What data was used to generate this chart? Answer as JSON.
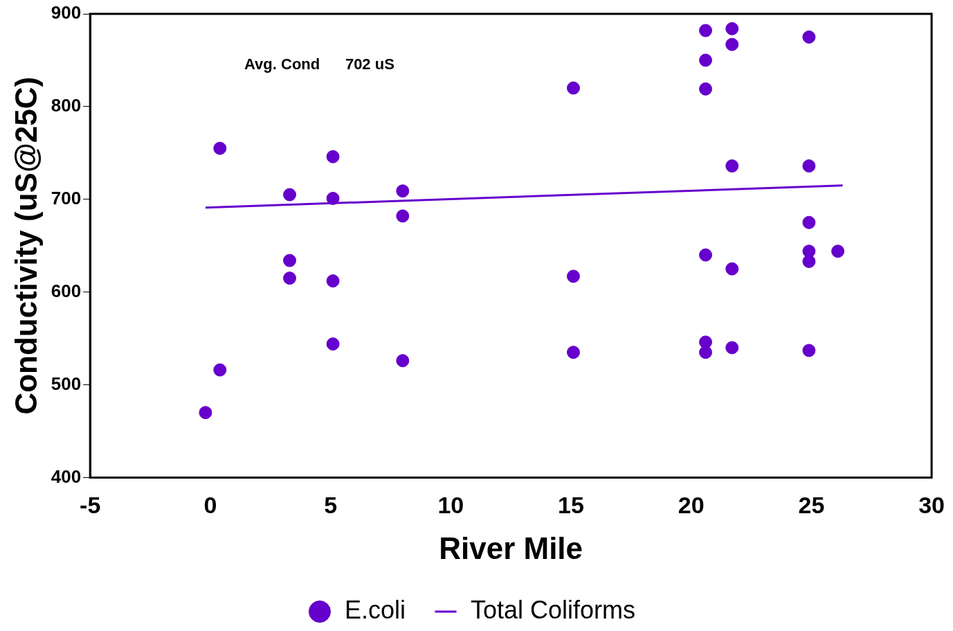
{
  "chart_data": {
    "type": "scatter",
    "xlabel": "River Mile",
    "ylabel": "Conductivity (uS@25C)",
    "annotations": [
      "Avg. Cond      702 uS"
    ],
    "xlim": [
      -5,
      30
    ],
    "xticks": [
      -5,
      0,
      5,
      10,
      15,
      20,
      25,
      30
    ],
    "ylim": [
      400,
      900
    ],
    "yticks": [
      400,
      500,
      600,
      700,
      800,
      900
    ],
    "grid": false,
    "legend": "bottom",
    "marker": "circle",
    "series": [
      {
        "name": "E.coli",
        "color": "#6600cc",
        "x": [
          -0.2,
          0.4,
          0.4,
          3.3,
          3.3,
          3.3,
          5.1,
          5.1,
          5.1,
          5.1,
          8,
          8,
          8,
          15.1,
          15.1,
          15.1,
          20.6,
          20.6,
          20.6,
          20.6,
          20.6,
          20.6,
          21.7,
          21.7,
          21.7,
          21.7,
          21.7,
          24.9,
          24.9,
          24.9,
          24.9,
          24.9,
          24.9,
          26.1
        ],
        "values": [
          470,
          755,
          516,
          705,
          634,
          615,
          746,
          701,
          612,
          544,
          709,
          682,
          526,
          820,
          617,
          535,
          882,
          850,
          819,
          640,
          546,
          535,
          884,
          867,
          736,
          625,
          540,
          875,
          736,
          675,
          644,
          633,
          537,
          644
        ]
      },
      {
        "name": "Total Coliforms",
        "type": "line",
        "color": "#6600cc",
        "marker": "none",
        "line_style": "solid",
        "x": [
          -0.2,
          26.3
        ],
        "values": [
          691,
          715
        ]
      }
    ]
  }
}
